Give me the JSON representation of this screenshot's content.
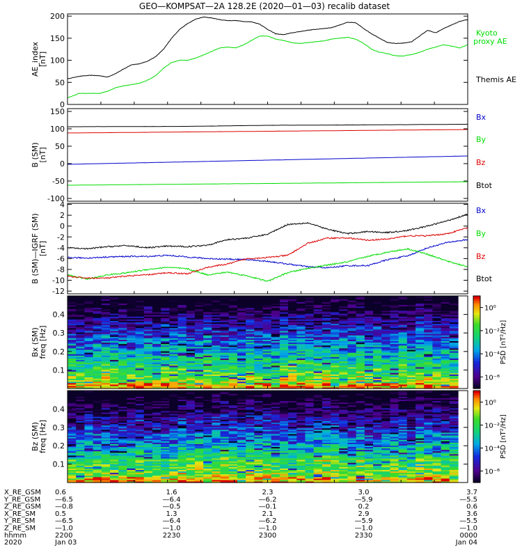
{
  "title": "GEO—KOMPSAT—2A 128.2E (2020—01—03) recalib dataset",
  "colors": {
    "black": "#000000",
    "red": "#dd0000",
    "green": "#00dd00",
    "blue": "#0000cc"
  },
  "chart_data": [
    {
      "id": "ae",
      "type": "line",
      "ylabel": [
        "AE_index",
        "[nT]"
      ],
      "ylim": [
        0,
        205
      ],
      "yticks": [
        0,
        50,
        100,
        150,
        200
      ],
      "xlim": [
        0,
        1
      ],
      "series": [
        {
          "name": "Themis AE",
          "color": "black",
          "label_pos": "lower-right",
          "x": [
            0,
            0.03,
            0.06,
            0.08,
            0.1,
            0.12,
            0.14,
            0.16,
            0.18,
            0.2,
            0.22,
            0.24,
            0.26,
            0.28,
            0.3,
            0.32,
            0.34,
            0.36,
            0.38,
            0.4,
            0.42,
            0.44,
            0.46,
            0.48,
            0.5,
            0.52,
            0.54,
            0.56,
            0.58,
            0.6,
            0.62,
            0.64,
            0.66,
            0.68,
            0.7,
            0.72,
            0.74,
            0.76,
            0.78,
            0.8,
            0.82,
            0.84,
            0.86,
            0.88,
            0.9,
            0.92,
            0.94,
            0.96,
            0.98,
            1.0
          ],
          "values": [
            58,
            64,
            66,
            65,
            62,
            70,
            80,
            90,
            92,
            98,
            108,
            125,
            150,
            170,
            183,
            193,
            198,
            196,
            192,
            190,
            190,
            188,
            187,
            182,
            170,
            160,
            158,
            162,
            165,
            168,
            170,
            172,
            174,
            180,
            186,
            185,
            172,
            160,
            150,
            140,
            138,
            139,
            142,
            155,
            168,
            162,
            172,
            180,
            188,
            192
          ]
        },
        {
          "name": "Kyoto proxy AE",
          "color": "green",
          "label_pos": "upper-right",
          "x": [
            0,
            0.03,
            0.06,
            0.08,
            0.1,
            0.12,
            0.14,
            0.16,
            0.18,
            0.2,
            0.22,
            0.24,
            0.26,
            0.28,
            0.3,
            0.32,
            0.34,
            0.36,
            0.38,
            0.4,
            0.42,
            0.44,
            0.46,
            0.48,
            0.5,
            0.52,
            0.54,
            0.56,
            0.58,
            0.6,
            0.62,
            0.64,
            0.66,
            0.68,
            0.7,
            0.72,
            0.74,
            0.76,
            0.78,
            0.8,
            0.82,
            0.84,
            0.86,
            0.88,
            0.9,
            0.92,
            0.94,
            0.96,
            0.98,
            1.0
          ],
          "values": [
            15,
            25,
            25,
            25,
            30,
            38,
            42,
            45,
            48,
            55,
            65,
            82,
            95,
            100,
            100,
            105,
            112,
            120,
            128,
            130,
            128,
            135,
            145,
            155,
            155,
            148,
            145,
            140,
            138,
            140,
            142,
            144,
            148,
            150,
            152,
            148,
            138,
            125,
            118,
            115,
            110,
            110,
            113,
            118,
            125,
            130,
            135,
            132,
            128,
            135
          ]
        }
      ]
    },
    {
      "id": "b",
      "type": "line",
      "ylabel": [
        "B (SM)",
        "[nT]"
      ],
      "ylim": [
        -108,
        158
      ],
      "yticks": [
        -100,
        -50,
        0,
        50,
        100,
        150
      ],
      "xlim": [
        0,
        1
      ],
      "series": [
        {
          "name": "Bx",
          "color": "blue",
          "x": [
            0,
            1
          ],
          "values": [
            -2,
            22
          ]
        },
        {
          "name": "By",
          "color": "green",
          "x": [
            0,
            1
          ],
          "values": [
            -62,
            -52
          ]
        },
        {
          "name": "Bz",
          "color": "red",
          "x": [
            0,
            1
          ],
          "values": [
            88,
            98
          ]
        },
        {
          "name": "Btot",
          "color": "black",
          "x": [
            0,
            0.3,
            0.5,
            0.7,
            1
          ],
          "values": [
            106,
            107,
            110,
            111,
            113
          ]
        }
      ]
    },
    {
      "id": "db",
      "type": "line",
      "ylabel": [
        "B (SM)—IGRF (SM)",
        "[nT]"
      ],
      "ylim": [
        -12.5,
        4.2
      ],
      "yticks": [
        -12,
        -10,
        -8,
        -6,
        -4,
        -2,
        0,
        2,
        4
      ],
      "xlim": [
        0,
        1
      ],
      "series": [
        {
          "name": "Bx",
          "color": "blue",
          "x": [
            0,
            0.05,
            0.1,
            0.15,
            0.2,
            0.25,
            0.3,
            0.35,
            0.4,
            0.45,
            0.5,
            0.55,
            0.6,
            0.65,
            0.7,
            0.75,
            0.8,
            0.85,
            0.9,
            0.95,
            1.0
          ],
          "values": [
            -5.8,
            -5.9,
            -5.7,
            -5.6,
            -5.6,
            -5.4,
            -5.7,
            -6.0,
            -6.1,
            -6.2,
            -6.5,
            -7.0,
            -7.5,
            -7.7,
            -7.3,
            -7.3,
            -6.2,
            -5.5,
            -4.0,
            -3.0,
            -2.5
          ]
        },
        {
          "name": "By",
          "color": "green",
          "x": [
            0,
            0.05,
            0.1,
            0.15,
            0.2,
            0.25,
            0.3,
            0.35,
            0.4,
            0.45,
            0.5,
            0.55,
            0.6,
            0.65,
            0.7,
            0.75,
            0.8,
            0.85,
            0.9,
            0.95,
            1.0
          ],
          "values": [
            -9.0,
            -9.8,
            -9.0,
            -8.6,
            -8.0,
            -7.6,
            -7.9,
            -9.0,
            -8.5,
            -9.2,
            -10.2,
            -8.6,
            -7.8,
            -7.2,
            -6.6,
            -5.6,
            -4.8,
            -4.2,
            -5.2,
            -6.5,
            -7.5
          ]
        },
        {
          "name": "Bz",
          "color": "red",
          "x": [
            0,
            0.05,
            0.1,
            0.15,
            0.2,
            0.25,
            0.3,
            0.35,
            0.4,
            0.45,
            0.5,
            0.55,
            0.6,
            0.65,
            0.7,
            0.75,
            0.8,
            0.85,
            0.9,
            0.95,
            1.0
          ],
          "values": [
            -9.3,
            -9.6,
            -9.6,
            -9.2,
            -9.0,
            -8.6,
            -8.8,
            -7.6,
            -7.0,
            -6.0,
            -5.8,
            -5.4,
            -3.2,
            -2.2,
            -2.2,
            -2.6,
            -2.4,
            -1.8,
            -1.8,
            -1.4,
            -0.3
          ]
        },
        {
          "name": "Btot",
          "color": "black",
          "x": [
            0,
            0.05,
            0.1,
            0.15,
            0.2,
            0.25,
            0.3,
            0.35,
            0.4,
            0.45,
            0.5,
            0.55,
            0.6,
            0.65,
            0.7,
            0.75,
            0.8,
            0.85,
            0.9,
            0.95,
            1.0
          ],
          "values": [
            -4.0,
            -4.2,
            -3.8,
            -3.6,
            -4.0,
            -3.7,
            -3.8,
            -3.5,
            -2.5,
            -2.2,
            -1.5,
            0.3,
            0.6,
            -0.6,
            -1.4,
            -1.0,
            -1.2,
            -0.8,
            0.0,
            1.0,
            2.2
          ]
        }
      ]
    },
    {
      "id": "spec_bx",
      "type": "heatmap",
      "ylabel": [
        "Bx (SM)",
        "freq [Hz]"
      ],
      "ylim": [
        0,
        0.5
      ],
      "yticks": [
        0.1,
        0.2,
        0.3,
        0.4
      ],
      "colorbar": {
        "label": "PSD [nT²/Hz]",
        "ticks": [
          "10⁰",
          "10⁻²",
          "10⁻⁴",
          "10⁻⁶"
        ],
        "tick_exponents": [
          0,
          -2,
          -4,
          -6
        ],
        "range": [
          -7,
          1
        ]
      }
    },
    {
      "id": "spec_bz",
      "type": "heatmap",
      "ylabel": [
        "Bz (SM)",
        "freq [Hz]"
      ],
      "ylim": [
        0,
        0.5
      ],
      "yticks": [
        0.1,
        0.2,
        0.3,
        0.4
      ],
      "colorbar": {
        "label": "PSD [nT²/Hz]",
        "ticks": [
          "10⁰",
          "10⁻²",
          "10⁻⁴",
          "10⁻⁶"
        ],
        "tick_exponents": [
          0,
          -2,
          -4,
          -6
        ],
        "range": [
          -7,
          1
        ]
      }
    }
  ],
  "ephemeris": {
    "x_ticks": [
      0,
      0.26,
      0.5,
      0.74,
      1
    ],
    "rows": [
      {
        "label": "X_RE_GSM",
        "values": [
          "0.6",
          "1.6",
          "2.3",
          "3.0",
          "3.7"
        ]
      },
      {
        "label": "Y_RE_GSM",
        "values": [
          "—6.5",
          "—6.4",
          "—6.2",
          "—5.9",
          "—5.5"
        ]
      },
      {
        "label": "Z_RE_GSM",
        "values": [
          "—0.8",
          "—0.5",
          "—0.1",
          "0.2",
          "0.6"
        ]
      },
      {
        "label": "X_RE_SM",
        "values": [
          "0.5",
          "1.3",
          "2.1",
          "2.9",
          "3.6"
        ]
      },
      {
        "label": "Y_RE_SM",
        "values": [
          "—6.5",
          "—6.4",
          "—6.2",
          "—5.9",
          "—5.5"
        ]
      },
      {
        "label": "Z_RE_SM",
        "values": [
          "—1.0",
          "—1.0",
          "—1.0",
          "—1.0",
          "—1.0"
        ]
      },
      {
        "label": "hhmm",
        "values": [
          "2200",
          "2230",
          "2300",
          "2330",
          "0000"
        ]
      },
      {
        "label": "2020",
        "values": [
          "Jan 03",
          "",
          "",
          "",
          "Jan 04"
        ]
      }
    ]
  }
}
